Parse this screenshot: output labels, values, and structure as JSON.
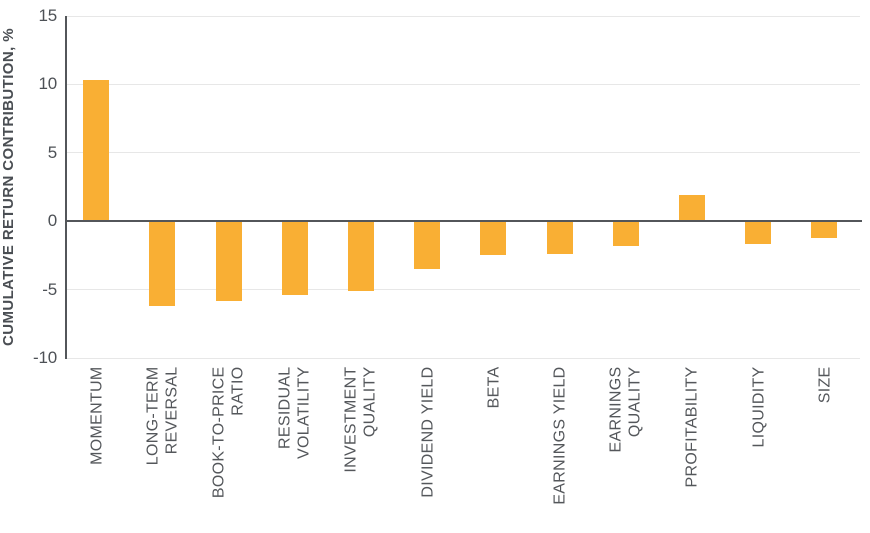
{
  "chart_data": {
    "type": "bar",
    "title": "",
    "xlabel": "",
    "ylabel": "CUMULATIVE RETURN CONTRIBUTION, %",
    "ylim": [
      -10,
      15
    ],
    "yticks": [
      15,
      10,
      5,
      0,
      -5,
      -10
    ],
    "grid": "horizontal-light",
    "legend": "none",
    "bar_color": "#F9AF34",
    "axis_color": "#53565A",
    "grid_color": "#E7E7E7",
    "tick_text_color": "#4D5156",
    "label_text_color": "#54575B",
    "categories": [
      "MOMENTUM",
      "LONG-TERM REVERSAL",
      "BOOK-TO-PRICE RATIO",
      "RESIDUAL VOLATILITY",
      "INVESTMENT QUALITY",
      "DIVIDEND YIELD",
      "BETA",
      "EARNINGS YIELD",
      "EARNINGS QUALITY",
      "PROFITABILITY",
      "LIQUIDITY",
      "SIZE"
    ],
    "values": [
      10.3,
      -6.2,
      -5.8,
      -5.4,
      -5.1,
      -3.5,
      -2.5,
      -2.4,
      -1.8,
      1.9,
      -1.7,
      -1.2
    ],
    "bars": [
      {
        "label": "MOMENTUM",
        "lines": [
          "MOMENTUM"
        ],
        "value": 10.3
      },
      {
        "label": "LONG-TERM REVERSAL",
        "lines": [
          "LONG-TERM",
          "REVERSAL"
        ],
        "value": -6.2
      },
      {
        "label": "BOOK-TO-PRICE RATIO",
        "lines": [
          "BOOK-TO-PRICE",
          "RATIO"
        ],
        "value": -5.8
      },
      {
        "label": "RESIDUAL VOLATILITY",
        "lines": [
          "RESIDUAL",
          "VOLATILITY"
        ],
        "value": -5.4
      },
      {
        "label": "INVESTMENT QUALITY",
        "lines": [
          "INVESTMENT",
          "QUALITY"
        ],
        "value": -5.1
      },
      {
        "label": "DIVIDEND YIELD",
        "lines": [
          "DIVIDEND YIELD"
        ],
        "value": -3.5
      },
      {
        "label": "BETA",
        "lines": [
          "BETA"
        ],
        "value": -2.5
      },
      {
        "label": "EARNINGS YIELD",
        "lines": [
          "EARNINGS YIELD"
        ],
        "value": -2.4
      },
      {
        "label": "EARNINGS QUALITY",
        "lines": [
          "EARNINGS",
          "QUALITY"
        ],
        "value": -1.8
      },
      {
        "label": "PROFITABILITY",
        "lines": [
          "PROFITABILITY"
        ],
        "value": 1.9
      },
      {
        "label": "LIQUIDITY",
        "lines": [
          "LIQUIDITY"
        ],
        "value": -1.7
      },
      {
        "label": "SIZE",
        "lines": [
          "SIZE"
        ],
        "value": -1.2
      }
    ]
  }
}
